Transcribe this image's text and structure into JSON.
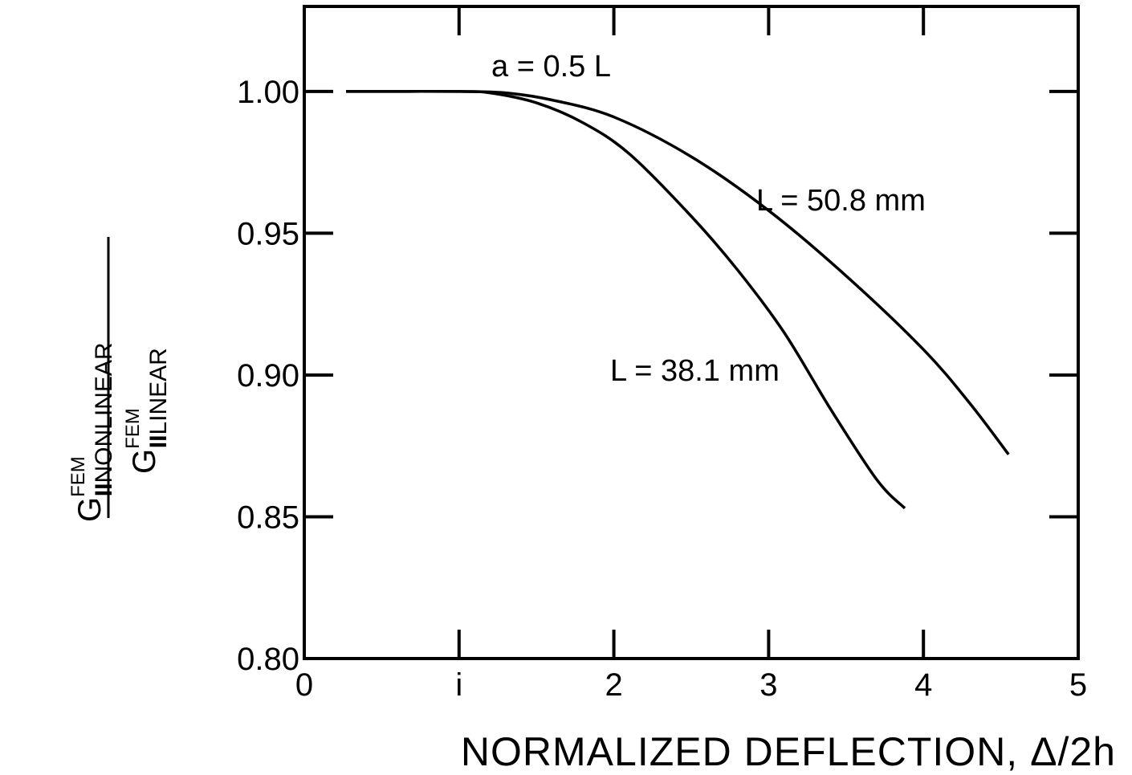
{
  "chart_data": {
    "type": "line",
    "xlabel": "NORMALIZED  DEFLECTION, Δ/2h",
    "ylabel": {
      "numerator": {
        "base": "G",
        "superscript": "FEM",
        "subscript_roman": "II",
        "subscript_text": "NONLINEAR"
      },
      "denominator": {
        "base": "G",
        "superscript": "FEM",
        "subscript_roman": "II",
        "subscript_text": "LINEAR"
      }
    },
    "xlim": [
      0,
      5
    ],
    "ylim": [
      0.8,
      1.03
    ],
    "xticks": [
      {
        "value": 0,
        "label": "0"
      },
      {
        "value": 1,
        "label": "i"
      },
      {
        "value": 2,
        "label": "2"
      },
      {
        "value": 3,
        "label": "3"
      },
      {
        "value": 4,
        "label": "4"
      },
      {
        "value": 5,
        "label": "5"
      }
    ],
    "yticks": [
      {
        "value": 0.8,
        "label": "0.80"
      },
      {
        "value": 0.85,
        "label": "0.85"
      },
      {
        "value": 0.9,
        "label": "0.90"
      },
      {
        "value": 0.95,
        "label": "0.95"
      },
      {
        "value": 1.0,
        "label": "1.00"
      }
    ],
    "annotation": "a = 0.5 L",
    "grid": false,
    "series": [
      {
        "name": "L = 50.8 mm",
        "x": [
          0.27,
          0.5,
          1.0,
          1.3,
          1.6,
          2.0,
          2.5,
          3.0,
          3.5,
          4.0,
          4.3,
          4.55
        ],
        "y": [
          1.0,
          1.0,
          1.0,
          0.9995,
          0.997,
          0.991,
          0.977,
          0.958,
          0.935,
          0.909,
          0.89,
          0.872
        ]
      },
      {
        "name": "L = 38.1 mm",
        "x": [
          0.27,
          0.5,
          1.0,
          1.2,
          1.5,
          1.8,
          2.1,
          2.5,
          2.8,
          3.1,
          3.4,
          3.7,
          3.88
        ],
        "y": [
          1.0,
          1.0,
          1.0,
          0.9995,
          0.996,
          0.989,
          0.978,
          0.956,
          0.937,
          0.915,
          0.888,
          0.863,
          0.853
        ]
      }
    ]
  }
}
